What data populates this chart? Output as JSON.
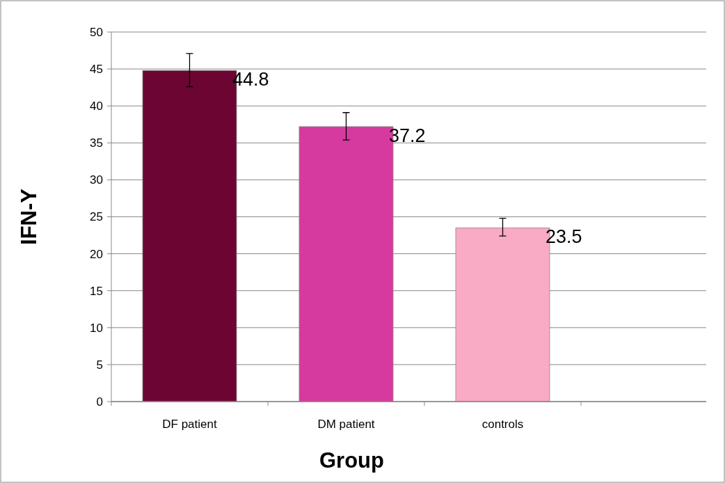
{
  "chart_data": {
    "type": "bar",
    "xlabel": "Group",
    "ylabel": "IFN-Y",
    "categories": [
      "DF patient",
      "DM patient",
      "controls"
    ],
    "values": [
      44.8,
      37.2,
      23.5
    ],
    "colors": [
      "#6d0533",
      "#d63a9f",
      "#f9aac4"
    ],
    "errors": [
      [
        42.6,
        47.1
      ],
      [
        35.4,
        39.1
      ],
      [
        22.4,
        24.8
      ]
    ],
    "data_labels": true,
    "ylim": [
      0,
      50
    ],
    "yticks": [
      0,
      5,
      10,
      15,
      20,
      25,
      30,
      35,
      40,
      45,
      50
    ],
    "grid": "y"
  }
}
